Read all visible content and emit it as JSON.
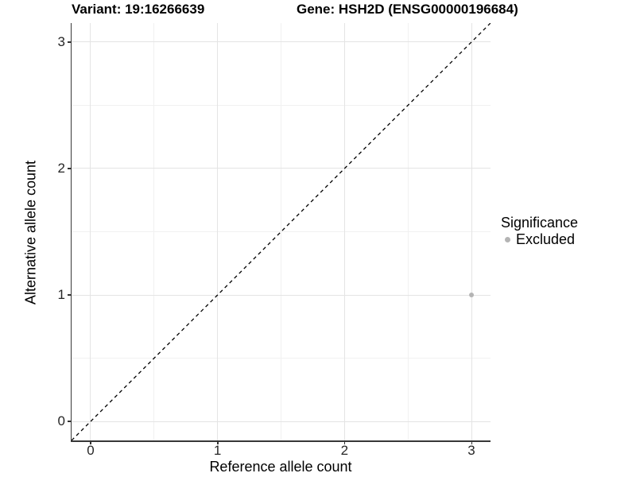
{
  "chart_data": {
    "type": "scatter",
    "title_left": "Variant: 19:16266639",
    "title_right": "Gene: HSH2D (ENSG00000196684)",
    "xlabel": "Reference allele count",
    "ylabel": "Alternative allele count",
    "xlim": [
      -0.15,
      3.15
    ],
    "ylim": [
      -0.15,
      3.15
    ],
    "x_ticks": [
      0,
      1,
      2,
      3
    ],
    "y_ticks": [
      0,
      1,
      2,
      3
    ],
    "x_minor_ticks": [
      0.5,
      1.5,
      2.5
    ],
    "y_minor_ticks": [
      0.5,
      1.5,
      2.5
    ],
    "grid": "on",
    "points": [
      {
        "x": 3,
        "y": 1,
        "series": "Excluded"
      }
    ],
    "reference_line": {
      "slope": 1,
      "intercept": 0,
      "style": "dashed",
      "color": "#000000"
    },
    "legend": {
      "title": "Significance",
      "position": "right",
      "entries": [
        {
          "label": "Excluded",
          "color": "#b4b4b4"
        }
      ]
    },
    "colors": {
      "point_excluded": "#b4b4b4",
      "grid_major": "#e4e4e4",
      "grid_minor": "#f1f1f1",
      "axis_line": "#383838",
      "text": "#000000"
    }
  }
}
